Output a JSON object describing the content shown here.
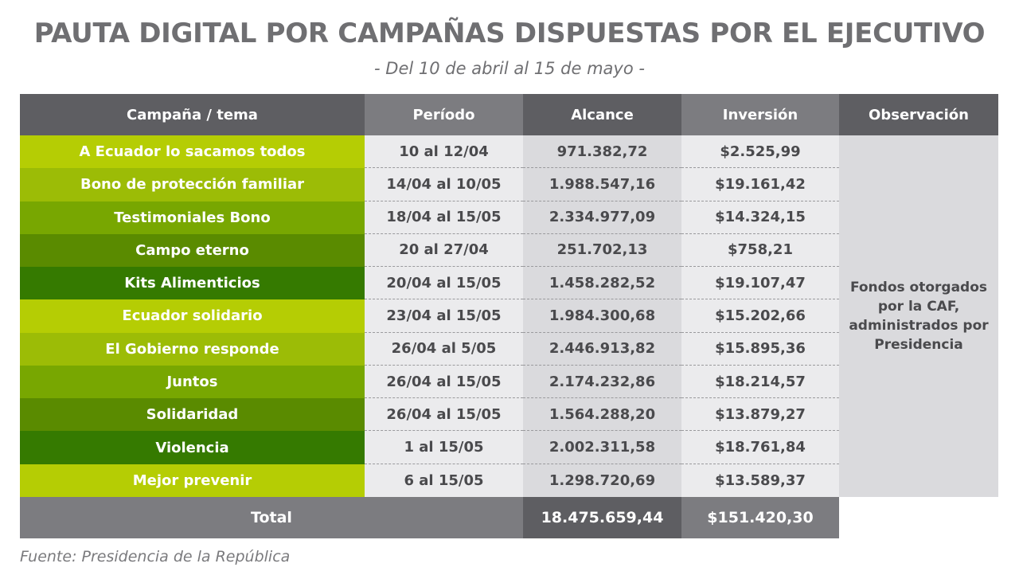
{
  "title": "PAUTA DIGITAL POR CAMPAÑAS DISPUESTAS POR EL EJECUTIVO",
  "subtitle": "- Del 10 de abril al 15 de mayo -",
  "source": "Fuente: Presidencia de la República",
  "headers": [
    "Campaña / tema",
    "Período",
    "Alcance",
    "Inversión",
    "Observación"
  ],
  "observation": "Fondos otorgados por la CAF, administrados por Presidencia",
  "total": {
    "label": "Total",
    "alcance": "18.475.659,44",
    "inversion": "$151.420,30"
  },
  "colors": {
    "campaign_shades": [
      "#b5cd04",
      "#9cbc06",
      "#78a701",
      "#5a8b00",
      "#357a00"
    ],
    "header_dark": "#5e5e62",
    "header_light": "#7c7c80",
    "col_period_bg": "#ebebed",
    "col_alcance_bg": "#dadadd",
    "col_inversion_bg": "#ebebed",
    "col_obs_bg": "#dadadd"
  },
  "chart_data": {
    "type": "table",
    "title": "PAUTA DIGITAL POR CAMPAÑAS DISPUESTAS POR EL EJECUTIVO",
    "subtitle": "- Del 10 de abril al 15 de mayo -",
    "columns": [
      "Campaña / tema",
      "Período",
      "Alcance",
      "Inversión",
      "Observación"
    ],
    "rows": [
      {
        "campaign": "A Ecuador lo sacamos todos",
        "period": "10 al 12/04",
        "alcance": "971.382,72",
        "inversion": "$2.525,99"
      },
      {
        "campaign": "Bono de protección familiar",
        "period": "14/04 al 10/05",
        "alcance": "1.988.547,16",
        "inversion": "$19.161,42"
      },
      {
        "campaign": "Testimoniales Bono",
        "period": "18/04 al 15/05",
        "alcance": "2.334.977,09",
        "inversion": "$14.324,15"
      },
      {
        "campaign": "Campo eterno",
        "period": "20 al 27/04",
        "alcance": "251.702,13",
        "inversion": "$758,21"
      },
      {
        "campaign": "Kits Alimenticios",
        "period": "20/04 al 15/05",
        "alcance": "1.458.282,52",
        "inversion": "$19.107,47"
      },
      {
        "campaign": "Ecuador solidario",
        "period": "23/04 al 15/05",
        "alcance": "1.984.300,68",
        "inversion": "$15.202,66"
      },
      {
        "campaign": "El Gobierno responde",
        "period": "26/04 al 5/05",
        "alcance": "2.446.913,82",
        "inversion": "$15.895,36"
      },
      {
        "campaign": "Juntos",
        "period": "26/04 al 15/05",
        "alcance": "2.174.232,86",
        "inversion": "$18.214,57"
      },
      {
        "campaign": "Solidaridad",
        "period": "26/04 al 15/05",
        "alcance": "1.564.288,20",
        "inversion": "$13.879,27"
      },
      {
        "campaign": "Violencia",
        "period": "1 al 15/05",
        "alcance": "2.002.311,58",
        "inversion": "$18.761,84"
      },
      {
        "campaign": "Mejor prevenir",
        "period": "6 al 15/05",
        "alcance": "1.298.720,69",
        "inversion": "$13.589,37"
      }
    ]
  }
}
